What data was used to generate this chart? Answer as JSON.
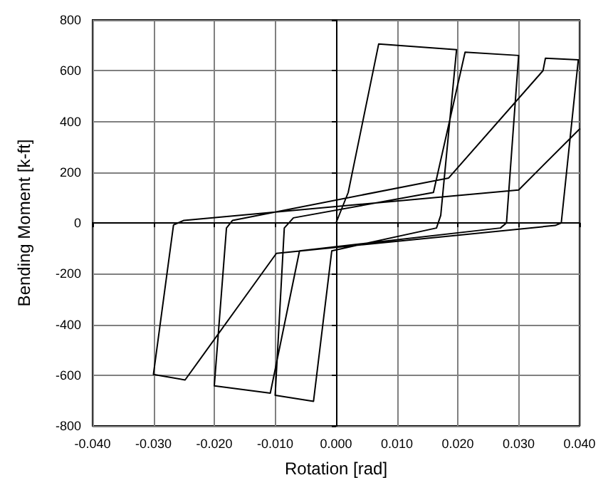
{
  "chart_data": {
    "type": "line",
    "xlabel": "Rotation [rad]",
    "ylabel": "Bending Moment [k-ft]",
    "x": [
      0,
      0.002,
      0.007,
      0.0198,
      0.0172,
      0.0165,
      -0.0007,
      -0.0037,
      -0.01,
      -0.0085,
      -0.007,
      0.016,
      0.0212,
      0.03,
      0.028,
      0.027,
      -0.006,
      -0.0108,
      -0.02,
      -0.018,
      -0.017,
      0.0185,
      0.034,
      0.0344,
      0.0398,
      0.037,
      0.036,
      -0.0098,
      -0.0248,
      -0.03,
      -0.0267,
      -0.025,
      0.03,
      0.04
    ],
    "series": [
      {
        "color": "#000000",
        "values": [
          0,
          120,
          705,
          683,
          30,
          -20,
          -110,
          -703,
          -679,
          -20,
          20,
          120,
          673,
          660,
          0,
          -20,
          -110,
          -671,
          -642,
          -20,
          10,
          177,
          600,
          649,
          643,
          0,
          -10,
          -120,
          -619,
          -597,
          -8,
          10,
          130,
          370
        ]
      }
    ],
    "xlim": [
      -0.04,
      0.04
    ],
    "xticks": [
      {
        "value": -0.04,
        "label": "-0.040"
      },
      {
        "value": -0.03,
        "label": "-0.030"
      },
      {
        "value": -0.02,
        "label": "-0.020"
      },
      {
        "value": -0.01,
        "label": "-0.010"
      },
      {
        "value": 0,
        "label": "0.000"
      },
      {
        "value": 0.01,
        "label": "0.010"
      },
      {
        "value": 0.02,
        "label": "0.020"
      },
      {
        "value": 0.03,
        "label": "0.030"
      },
      {
        "value": 0.04,
        "label": "0.040"
      }
    ],
    "ylim": [
      -800,
      800
    ],
    "yticks": [
      -800,
      -600,
      -400,
      -200,
      0,
      200,
      400,
      600,
      800
    ],
    "grid": true,
    "marker": "none",
    "line_style": "solid"
  }
}
